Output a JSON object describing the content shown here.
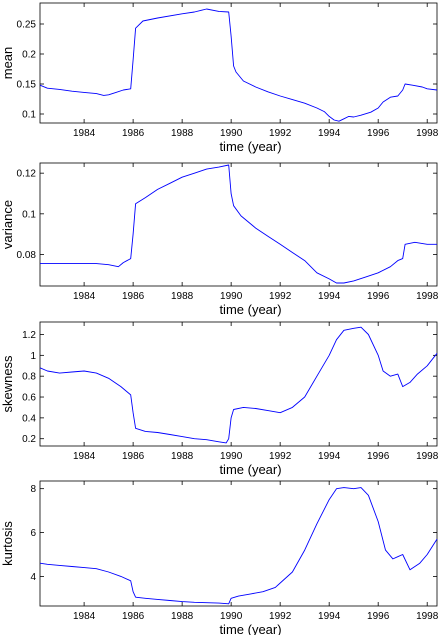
{
  "chart_data": [
    {
      "type": "line",
      "xlabel": "time (year)",
      "ylabel": "mean",
      "xlim": [
        1982.2,
        1998.4
      ],
      "ylim": [
        0.085,
        0.285
      ],
      "xticks": [
        1984,
        1986,
        1988,
        1990,
        1992,
        1994,
        1996,
        1998
      ],
      "yticks": [
        0.1,
        0.15,
        0.2,
        0.25
      ],
      "ytick_labels": [
        "0.1",
        "0.15",
        "0.2",
        "0.25"
      ],
      "series_color": "#0000ff",
      "grid": false,
      "x": [
        1982.2,
        1982.5,
        1983.0,
        1983.5,
        1984.0,
        1984.5,
        1984.8,
        1985.0,
        1985.3,
        1985.6,
        1985.9,
        1986.0,
        1986.1,
        1986.4,
        1987.0,
        1988.0,
        1988.5,
        1988.8,
        1989.0,
        1989.5,
        1989.9,
        1990.0,
        1990.1,
        1990.2,
        1990.5,
        1991.0,
        1991.5,
        1992.0,
        1992.5,
        1993.0,
        1993.5,
        1993.8,
        1994.0,
        1994.2,
        1994.4,
        1994.6,
        1994.8,
        1995.0,
        1995.3,
        1995.7,
        1996.0,
        1996.2,
        1996.5,
        1996.8,
        1997.0,
        1997.1,
        1997.4,
        1997.8,
        1998.0,
        1998.4
      ],
      "y": [
        0.148,
        0.143,
        0.141,
        0.138,
        0.136,
        0.134,
        0.131,
        0.132,
        0.136,
        0.14,
        0.142,
        0.19,
        0.243,
        0.255,
        0.26,
        0.267,
        0.27,
        0.273,
        0.275,
        0.271,
        0.27,
        0.23,
        0.18,
        0.17,
        0.155,
        0.145,
        0.137,
        0.13,
        0.124,
        0.118,
        0.11,
        0.104,
        0.096,
        0.09,
        0.088,
        0.092,
        0.096,
        0.095,
        0.098,
        0.103,
        0.11,
        0.12,
        0.128,
        0.13,
        0.14,
        0.15,
        0.148,
        0.145,
        0.142,
        0.14
      ]
    },
    {
      "type": "line",
      "xlabel": "time (year)",
      "ylabel": "variance",
      "xlim": [
        1982.2,
        1998.4
      ],
      "ylim": [
        0.0645,
        0.125
      ],
      "xticks": [
        1984,
        1986,
        1988,
        1990,
        1992,
        1994,
        1996,
        1998
      ],
      "yticks": [
        0.08,
        0.1,
        0.12
      ],
      "ytick_labels": [
        "0.08",
        "0.1",
        "0.12"
      ],
      "series_color": "#0000ff",
      "grid": false,
      "x": [
        1982.2,
        1982.5,
        1983.0,
        1983.5,
        1984.0,
        1984.5,
        1985.0,
        1985.4,
        1985.6,
        1985.9,
        1986.0,
        1986.1,
        1986.5,
        1987.0,
        1987.5,
        1988.0,
        1988.5,
        1989.0,
        1989.5,
        1989.9,
        1990.0,
        1990.1,
        1990.4,
        1991.0,
        1991.5,
        1992.0,
        1992.5,
        1993.0,
        1993.5,
        1994.0,
        1994.3,
        1994.6,
        1995.0,
        1995.5,
        1996.0,
        1996.5,
        1996.8,
        1997.0,
        1997.1,
        1997.5,
        1998.0,
        1998.4
      ],
      "y": [
        0.0755,
        0.0755,
        0.0755,
        0.0755,
        0.0755,
        0.0755,
        0.075,
        0.074,
        0.076,
        0.078,
        0.09,
        0.105,
        0.108,
        0.112,
        0.115,
        0.118,
        0.12,
        0.122,
        0.123,
        0.124,
        0.11,
        0.104,
        0.099,
        0.093,
        0.089,
        0.085,
        0.081,
        0.077,
        0.071,
        0.068,
        0.066,
        0.066,
        0.067,
        0.069,
        0.071,
        0.074,
        0.077,
        0.078,
        0.085,
        0.086,
        0.085,
        0.085
      ]
    },
    {
      "type": "line",
      "xlabel": "time (year)",
      "ylabel": "skewness",
      "xlim": [
        1982.2,
        1998.4
      ],
      "ylim": [
        0.13,
        1.32
      ],
      "xticks": [
        1984,
        1986,
        1988,
        1990,
        1992,
        1994,
        1996,
        1998
      ],
      "yticks": [
        0.2,
        0.4,
        0.6,
        0.8,
        1,
        1.2
      ],
      "ytick_labels": [
        "0.2",
        "0.4",
        "0.6",
        "0.8",
        "1",
        "1.2"
      ],
      "series_color": "#0000ff",
      "grid": false,
      "x": [
        1982.2,
        1982.5,
        1983.0,
        1983.5,
        1984.0,
        1984.5,
        1985.0,
        1985.5,
        1985.9,
        1986.0,
        1986.1,
        1986.5,
        1987.0,
        1987.5,
        1988.0,
        1988.5,
        1989.0,
        1989.5,
        1989.8,
        1989.9,
        1990.0,
        1990.1,
        1990.5,
        1991.0,
        1991.5,
        1992.0,
        1992.5,
        1993.0,
        1993.5,
        1994.0,
        1994.3,
        1994.6,
        1995.0,
        1995.3,
        1995.6,
        1996.0,
        1996.2,
        1996.5,
        1996.8,
        1997.0,
        1997.3,
        1997.6,
        1998.0,
        1998.4
      ],
      "y": [
        0.88,
        0.85,
        0.83,
        0.84,
        0.85,
        0.83,
        0.78,
        0.7,
        0.62,
        0.45,
        0.3,
        0.27,
        0.26,
        0.24,
        0.22,
        0.2,
        0.19,
        0.17,
        0.16,
        0.2,
        0.4,
        0.48,
        0.5,
        0.49,
        0.47,
        0.45,
        0.5,
        0.6,
        0.8,
        1.0,
        1.15,
        1.24,
        1.26,
        1.27,
        1.2,
        1.0,
        0.85,
        0.8,
        0.82,
        0.7,
        0.74,
        0.82,
        0.9,
        1.02
      ]
    },
    {
      "type": "line",
      "xlabel": "time (year)",
      "ylabel": "kurtosis",
      "xlim": [
        1982.2,
        1998.4
      ],
      "ylim": [
        2.65,
        8.35
      ],
      "xticks": [
        1984,
        1986,
        1988,
        1990,
        1992,
        1994,
        1996,
        1998
      ],
      "yticks": [
        4,
        6,
        8
      ],
      "ytick_labels": [
        "4",
        "6",
        "8"
      ],
      "series_color": "#0000ff",
      "grid": false,
      "x": [
        1982.2,
        1982.5,
        1983.0,
        1983.5,
        1984.0,
        1984.5,
        1985.0,
        1985.5,
        1985.9,
        1986.0,
        1986.1,
        1986.5,
        1987.0,
        1987.5,
        1988.0,
        1988.5,
        1989.0,
        1989.5,
        1989.9,
        1990.0,
        1990.3,
        1990.8,
        1991.3,
        1991.8,
        1992.0,
        1992.5,
        1993.0,
        1993.5,
        1994.0,
        1994.3,
        1994.6,
        1995.0,
        1995.3,
        1995.6,
        1996.0,
        1996.3,
        1996.6,
        1996.8,
        1997.0,
        1997.3,
        1997.7,
        1998.0,
        1998.4
      ],
      "y": [
        4.6,
        4.55,
        4.5,
        4.45,
        4.4,
        4.35,
        4.2,
        4.0,
        3.8,
        3.3,
        3.05,
        3.0,
        2.95,
        2.9,
        2.85,
        2.82,
        2.8,
        2.78,
        2.75,
        3.0,
        3.1,
        3.2,
        3.3,
        3.5,
        3.7,
        4.2,
        5.2,
        6.4,
        7.5,
        8.0,
        8.05,
        8.0,
        8.05,
        7.7,
        6.5,
        5.2,
        4.8,
        4.9,
        5.0,
        4.3,
        4.6,
        5.0,
        5.7
      ]
    }
  ]
}
